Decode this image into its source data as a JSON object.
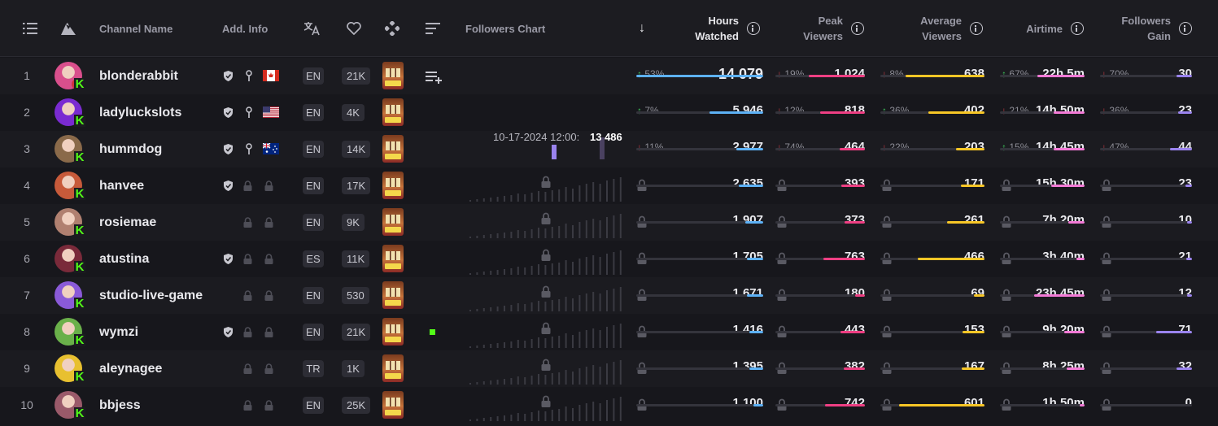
{
  "headers": {
    "channel_name": "Channel Name",
    "add_info": "Add. Info",
    "followers_chart": "Followers Chart",
    "hours_watched_1": "Hours",
    "hours_watched_2": "Watched",
    "peak_viewers_1": "Peak",
    "peak_viewers_2": "Viewers",
    "average_viewers_1": "Average",
    "average_viewers_2": "Viewers",
    "airtime": "Airtime",
    "followers_gain_1": "Followers",
    "followers_gain_2": "Gain",
    "sort_arrow": "↓"
  },
  "tooltip": {
    "date": "10-17-2024 12:00:",
    "value": "13 486"
  },
  "colors": {
    "hours": "#5db1f5",
    "peak": "#ef3f83",
    "average": "#f7c626",
    "airtime": "#f37ad6",
    "followers": "#9a83ee",
    "kick": "#53fc18"
  },
  "rows": [
    {
      "rank": "1",
      "name": "blonderabbit",
      "verified": true,
      "pin": true,
      "flag": "ca",
      "lang": "EN",
      "followers": "21K",
      "avatar": "#d94f8c",
      "red": true,
      "add_playlist": true,
      "hours": "14 079",
      "hours_pct": "53%",
      "hours_dir": "up",
      "hours_frac": 1.0,
      "peak": "1 024",
      "peak_pct": "19%",
      "peak_dir": "down",
      "peak_frac": 0.63,
      "avg": "638",
      "avg_pct": "8%",
      "avg_dir": "down",
      "avg_frac": 0.76,
      "air": "22h 5m",
      "air_pct": "67%",
      "air_dir": "up",
      "air_frac": 0.56,
      "fol": "30",
      "fol_pct": "70%",
      "fol_dir": "down",
      "fol_frac": 0.17,
      "locked": false
    },
    {
      "rank": "2",
      "name": "ladyluckslots",
      "verified": true,
      "pin": true,
      "flag": "us",
      "lang": "EN",
      "followers": "4K",
      "avatar": "#7a2bd1",
      "hours": "5 946",
      "hours_pct": "7%",
      "hours_dir": "up",
      "hours_frac": 0.42,
      "peak": "818",
      "peak_pct": "12%",
      "peak_dir": "down",
      "peak_frac": 0.5,
      "avg": "402",
      "avg_pct": "36%",
      "avg_dir": "up",
      "avg_frac": 0.54,
      "air": "14h 50m",
      "air_pct": "21%",
      "air_dir": "down",
      "air_frac": 0.37,
      "fol": "23",
      "fol_pct": "36%",
      "fol_dir": "down",
      "fol_frac": 0.15,
      "locked": false
    },
    {
      "rank": "3",
      "name": "hummdog",
      "verified": true,
      "pin": true,
      "flag": "au",
      "lang": "EN",
      "followers": "14K",
      "avatar": "#8a6a4a",
      "hours": "2 977",
      "hours_pct": "11%",
      "hours_dir": "down",
      "hours_frac": 0.21,
      "peak": "464",
      "peak_pct": "74%",
      "peak_dir": "down",
      "peak_frac": 0.28,
      "avg": "203",
      "avg_pct": "22%",
      "avg_dir": "down",
      "avg_frac": 0.27,
      "air": "14h 45m",
      "air_pct": "15%",
      "air_dir": "up",
      "air_frac": 0.37,
      "fol": "44",
      "fol_pct": "47%",
      "fol_dir": "down",
      "fol_frac": 0.24,
      "locked": false
    },
    {
      "rank": "4",
      "name": "hanvee",
      "verified": true,
      "lang": "EN",
      "followers": "17K",
      "avatar": "#c75a3a",
      "hours": "2 635",
      "hours_frac": 0.19,
      "peak": "393",
      "peak_frac": 0.26,
      "avg": "171",
      "avg_frac": 0.23,
      "air": "15h 30m",
      "air_frac": 0.39,
      "fol": "23",
      "fol_frac": 0.07,
      "locked": true
    },
    {
      "rank": "5",
      "name": "rosiemae",
      "verified": false,
      "lang": "EN",
      "followers": "9K",
      "avatar": "#b08070",
      "hours": "1 907",
      "hours_frac": 0.14,
      "peak": "373",
      "peak_frac": 0.23,
      "avg": "261",
      "avg_frac": 0.36,
      "air": "7h 20m",
      "air_frac": 0.19,
      "fol": "10",
      "fol_frac": 0.05,
      "locked": true
    },
    {
      "rank": "6",
      "name": "atustina",
      "verified": true,
      "lang": "ES",
      "followers": "11K",
      "avatar": "#7a2a3a",
      "hours": "1 705",
      "hours_frac": 0.13,
      "peak": "763",
      "peak_frac": 0.46,
      "avg": "466",
      "avg_frac": 0.64,
      "air": "3h 40m",
      "air_frac": 0.1,
      "fol": "21",
      "fol_frac": 0.06,
      "locked": true
    },
    {
      "rank": "7",
      "name": "studio-live-game",
      "verified": false,
      "lang": "EN",
      "followers": "530",
      "avatar": "#8a5ad8",
      "hours": "1 671",
      "hours_frac": 0.13,
      "peak": "180",
      "peak_frac": 0.11,
      "avg": "69",
      "avg_frac": 0.1,
      "air": "23h 45m",
      "air_frac": 0.6,
      "fol": "12",
      "fol_frac": 0.05,
      "locked": true
    },
    {
      "rank": "8",
      "name": "wymzi",
      "verified": true,
      "lang": "EN",
      "followers": "21K",
      "avatar": "#6ab04a",
      "live": true,
      "hours": "1 416",
      "hours_frac": 0.11,
      "peak": "443",
      "peak_frac": 0.27,
      "avg": "153",
      "avg_frac": 0.21,
      "air": "9h 20m",
      "air_frac": 0.24,
      "fol": "71",
      "fol_frac": 0.39,
      "locked": true
    },
    {
      "rank": "9",
      "name": "aleynagee",
      "verified": false,
      "lang": "TR",
      "followers": "1K",
      "avatar": "#e8c030",
      "hours": "1 395",
      "hours_frac": 0.11,
      "peak": "382",
      "peak_frac": 0.24,
      "avg": "167",
      "avg_frac": 0.22,
      "air": "8h 25m",
      "air_frac": 0.21,
      "fol": "32",
      "fol_frac": 0.17,
      "locked": true
    },
    {
      "rank": "10",
      "name": "bbjess",
      "verified": false,
      "lang": "EN",
      "followers": "25K",
      "avatar": "#9a5a6a",
      "hours": "1 100",
      "hours_frac": 0.08,
      "peak": "742",
      "peak_frac": 0.45,
      "avg": "601",
      "avg_frac": 0.82,
      "air": "1h 50m",
      "air_frac": 0.05,
      "fol": "0",
      "fol_frac": 0.0,
      "locked": true
    }
  ]
}
